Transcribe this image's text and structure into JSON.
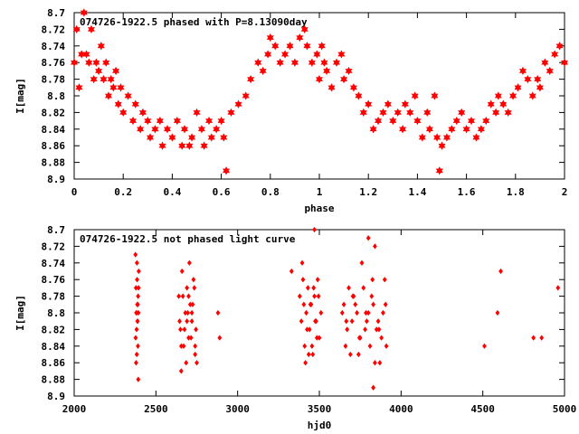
{
  "chart_data": [
    {
      "type": "scatter",
      "title": "074726-1922.5 phased with P=8.13090day",
      "xlabel": "phase",
      "ylabel": "I[mag]",
      "xlim": [
        0,
        2
      ],
      "ylim": [
        8.9,
        8.7
      ],
      "xticks": [
        "0",
        "0.2",
        "0.4",
        "0.6",
        "0.8",
        "1",
        "1.2",
        "1.4",
        "1.6",
        "1.8",
        "2"
      ],
      "yticks": [
        "8.7",
        "8.72",
        "8.74",
        "8.76",
        "8.78",
        "8.8",
        "8.82",
        "8.84",
        "8.86",
        "8.88",
        "8.9"
      ],
      "marker": "star",
      "color": "#ff0000",
      "grid": false,
      "series": [
        {
          "x": [
            0.0,
            0.01,
            0.02,
            0.03,
            0.04,
            0.05,
            0.06,
            0.07,
            0.08,
            0.09,
            0.1,
            0.11,
            0.12,
            0.13,
            0.14,
            0.15,
            0.16,
            0.17,
            0.18,
            0.19,
            0.2,
            0.22,
            0.24,
            0.25,
            0.27,
            0.28,
            0.3,
            0.31,
            0.33,
            0.35,
            0.36,
            0.38,
            0.4,
            0.42,
            0.44,
            0.45,
            0.47,
            0.48,
            0.5,
            0.52,
            0.53,
            0.55,
            0.56,
            0.58,
            0.6,
            0.61,
            0.62,
            0.64,
            0.67,
            0.7,
            0.72,
            0.75,
            0.77,
            0.79,
            0.8,
            0.82,
            0.84,
            0.86,
            0.88,
            0.9,
            0.92,
            0.94,
            0.95,
            0.97,
            0.99,
            1.0,
            1.01,
            1.02,
            1.03,
            1.05,
            1.07,
            1.09,
            1.1,
            1.12,
            1.14,
            1.16,
            1.18,
            1.2,
            1.22,
            1.24,
            1.26,
            1.28,
            1.3,
            1.32,
            1.34,
            1.35,
            1.37,
            1.39,
            1.4,
            1.42,
            1.44,
            1.45,
            1.47,
            1.48,
            1.49,
            1.5,
            1.52,
            1.54,
            1.56,
            1.58,
            1.6,
            1.62,
            1.64,
            1.66,
            1.68,
            1.7,
            1.72,
            1.73,
            1.75,
            1.77,
            1.79,
            1.81,
            1.83,
            1.85,
            1.87,
            1.89,
            1.9,
            1.92,
            1.94,
            1.96,
            1.98,
            2.0
          ],
          "y": [
            8.76,
            8.72,
            8.79,
            8.75,
            8.7,
            8.75,
            8.76,
            8.72,
            8.78,
            8.76,
            8.77,
            8.74,
            8.78,
            8.76,
            8.8,
            8.78,
            8.79,
            8.77,
            8.81,
            8.79,
            8.82,
            8.8,
            8.83,
            8.81,
            8.84,
            8.82,
            8.83,
            8.85,
            8.84,
            8.83,
            8.86,
            8.84,
            8.85,
            8.83,
            8.86,
            8.84,
            8.86,
            8.85,
            8.82,
            8.84,
            8.86,
            8.83,
            8.85,
            8.84,
            8.83,
            8.85,
            8.89,
            8.82,
            8.81,
            8.8,
            8.78,
            8.76,
            8.77,
            8.75,
            8.73,
            8.74,
            8.76,
            8.75,
            8.74,
            8.76,
            8.73,
            8.72,
            8.74,
            8.76,
            8.75,
            8.78,
            8.74,
            8.76,
            8.77,
            8.79,
            8.76,
            8.75,
            8.78,
            8.77,
            8.79,
            8.8,
            8.82,
            8.81,
            8.84,
            8.83,
            8.82,
            8.81,
            8.83,
            8.82,
            8.84,
            8.81,
            8.82,
            8.8,
            8.83,
            8.85,
            8.82,
            8.84,
            8.8,
            8.85,
            8.89,
            8.86,
            8.85,
            8.84,
            8.83,
            8.82,
            8.84,
            8.83,
            8.85,
            8.84,
            8.83,
            8.81,
            8.82,
            8.8,
            8.81,
            8.82,
            8.8,
            8.79,
            8.77,
            8.78,
            8.8,
            8.78,
            8.79,
            8.76,
            8.77,
            8.75,
            8.74,
            8.76
          ]
        }
      ]
    },
    {
      "type": "scatter",
      "title": "074726-1922.5 not phased light curve",
      "xlabel": "hjd0",
      "ylabel": "I[mag]",
      "xlim": [
        2000,
        5000
      ],
      "ylim": [
        8.9,
        8.7
      ],
      "xticks": [
        "2000",
        "2500",
        "3000",
        "3500",
        "4000",
        "4500",
        "5000"
      ],
      "yticks": [
        "8.7",
        "8.72",
        "8.74",
        "8.76",
        "8.78",
        "8.8",
        "8.82",
        "8.84",
        "8.86",
        "8.88",
        "8.9"
      ],
      "marker": "diamond",
      "color": "#ff0000",
      "grid": false,
      "series": [
        {
          "x": [
            2375,
            2378,
            2380,
            2382,
            2383,
            2385,
            2386,
            2388,
            2390,
            2391,
            2393,
            2395,
            2376,
            2379,
            2384,
            2387,
            2389,
            2392,
            2394,
            2381,
            2640,
            2650,
            2660,
            2670,
            2680,
            2690,
            2700,
            2710,
            2720,
            2730,
            2740,
            2645,
            2655,
            2665,
            2675,
            2685,
            2695,
            2705,
            2715,
            2725,
            2735,
            2745,
            2750,
            2655,
            2690,
            2700,
            2720,
            2740,
            2880,
            2890,
            3330,
            3380,
            3390,
            3400,
            3410,
            3420,
            3430,
            3440,
            3450,
            3460,
            3470,
            3480,
            3490,
            3500,
            3510,
            3395,
            3415,
            3425,
            3445,
            3455,
            3465,
            3475,
            3485,
            3495,
            3405,
            3435,
            3470,
            3640,
            3660,
            3680,
            3700,
            3720,
            3740,
            3760,
            3780,
            3800,
            3820,
            3840,
            3860,
            3880,
            3900,
            3650,
            3670,
            3690,
            3710,
            3730,
            3750,
            3770,
            3790,
            3810,
            3830,
            3850,
            3870,
            3890,
            3910,
            3665,
            3705,
            3745,
            3785,
            3825,
            3865,
            3905,
            3800,
            3830,
            3840,
            4510,
            4590,
            4610,
            4810,
            4860,
            4960
          ],
          "y": [
            8.73,
            8.77,
            8.8,
            8.82,
            8.85,
            8.76,
            8.79,
            8.81,
            8.84,
            8.78,
            8.8,
            8.75,
            8.83,
            8.86,
            8.74,
            8.81,
            8.79,
            8.88,
            8.77,
            8.8,
            8.78,
            8.82,
            8.75,
            8.84,
            8.8,
            8.77,
            8.83,
            8.79,
            8.81,
            8.76,
            8.85,
            8.81,
            8.84,
            8.78,
            8.82,
            8.86,
            8.8,
            8.74,
            8.83,
            8.79,
            8.77,
            8.82,
            8.86,
            8.87,
            8.81,
            8.78,
            8.8,
            8.84,
            8.8,
            8.83,
            8.75,
            8.78,
            8.81,
            8.76,
            8.84,
            8.8,
            8.77,
            8.82,
            8.79,
            8.85,
            8.78,
            8.81,
            8.76,
            8.83,
            8.8,
            8.74,
            8.86,
            8.82,
            8.79,
            8.84,
            8.77,
            8.81,
            8.83,
            8.78,
            8.79,
            8.85,
            8.7,
            8.8,
            8.84,
            8.77,
            8.81,
            8.79,
            8.85,
            8.74,
            8.82,
            8.8,
            8.78,
            8.86,
            8.81,
            8.83,
            8.76,
            8.79,
            8.82,
            8.85,
            8.78,
            8.8,
            8.83,
            8.77,
            8.81,
            8.84,
            8.79,
            8.82,
            8.86,
            8.8,
            8.84,
            8.81,
            8.78,
            8.83,
            8.8,
            8.76,
            8.82,
            8.79,
            8.71,
            8.89,
            8.72,
            8.84,
            8.8,
            8.75,
            8.83,
            8.83,
            8.77
          ]
        }
      ]
    }
  ]
}
